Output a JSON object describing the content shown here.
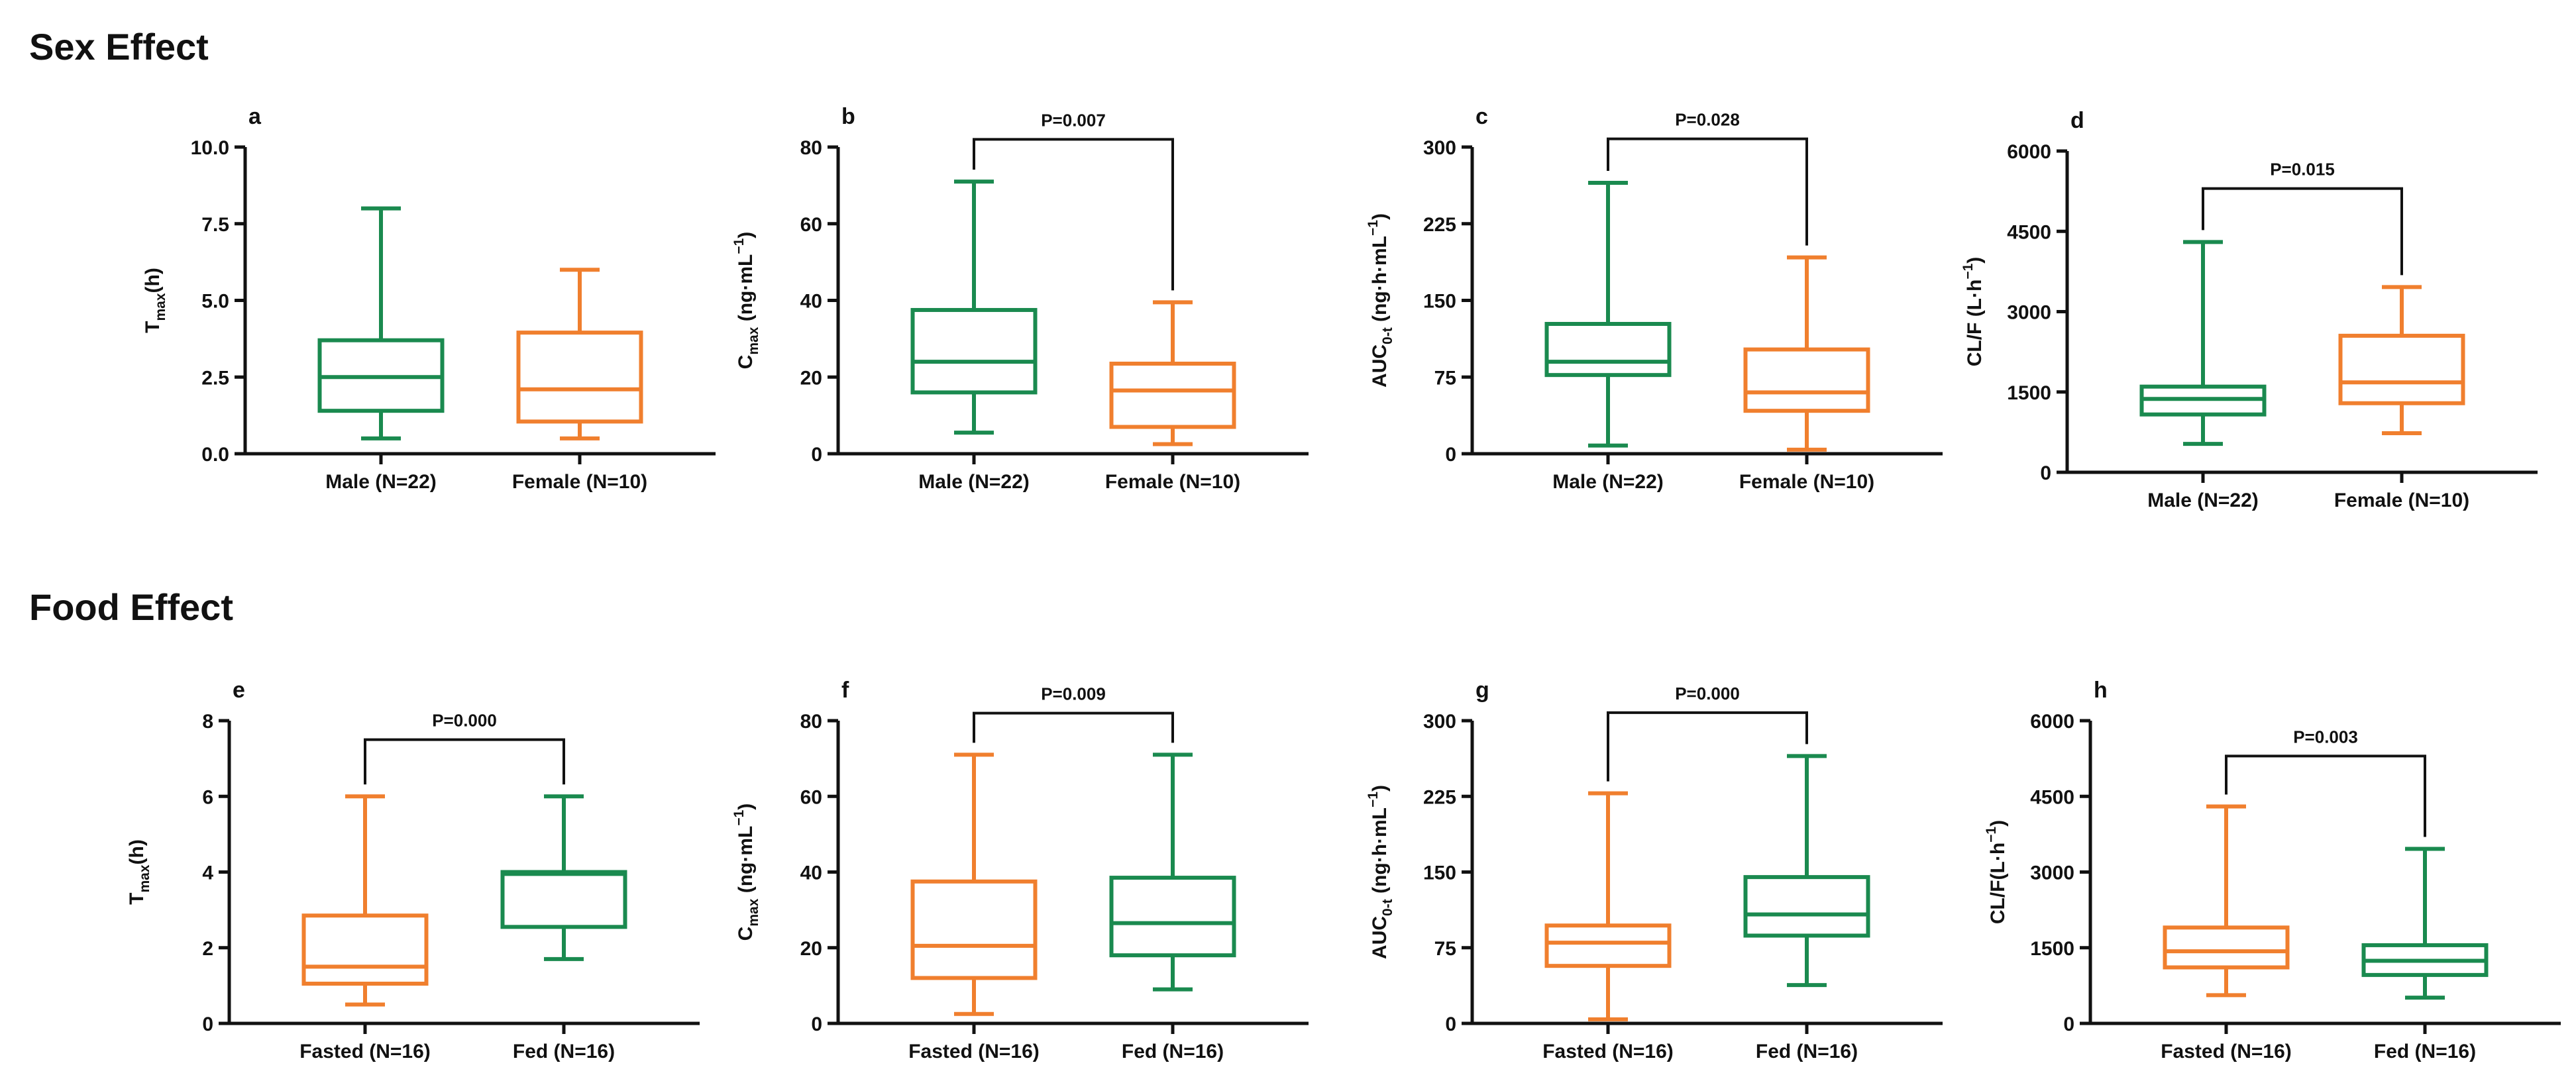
{
  "sections": {
    "sex_title": "Sex Effect",
    "food_title": "Food Effect"
  },
  "colors": {
    "green": "#1a8a4f",
    "orange": "#f07f2e",
    "axis": "#111111"
  },
  "chart_data": [
    {
      "panel": "a",
      "type": "box",
      "ylabel_main": "T",
      "ylabel_sub": "max",
      "ylabel_tail": "(h)",
      "ylim": [
        0,
        10
      ],
      "yticks": [
        "0.0",
        "2.5",
        "5.0",
        "7.5",
        "10.0"
      ],
      "categories": [
        "Male (N=22)",
        "Female (N=10)"
      ],
      "boxes": [
        {
          "min": 0.5,
          "q1": 1.4,
          "median": 2.5,
          "q3": 3.7,
          "max": 8.0,
          "color": "green"
        },
        {
          "min": 0.5,
          "q1": 1.05,
          "median": 2.1,
          "q3": 3.95,
          "max": 6.0,
          "color": "orange"
        }
      ],
      "pvalue": null
    },
    {
      "panel": "b",
      "type": "box",
      "ylabel_main": "C",
      "ylabel_sub": "max",
      "ylabel_tail": " (ng·mL",
      "ylabel_sup": "−1",
      "ylabel_end": ")",
      "ylim": [
        0,
        80
      ],
      "yticks": [
        "0",
        "20",
        "40",
        "60",
        "80"
      ],
      "categories": [
        "Male (N=22)",
        "Female (N=10)"
      ],
      "boxes": [
        {
          "min": 5.5,
          "q1": 16,
          "median": 24,
          "q3": 37.5,
          "max": 71,
          "color": "green"
        },
        {
          "min": 2.5,
          "q1": 7,
          "median": 16.5,
          "q3": 23.5,
          "max": 39.5,
          "color": "orange"
        }
      ],
      "pvalue": "P=0.007",
      "bracket_y": 82
    },
    {
      "panel": "c",
      "type": "box",
      "ylabel_main": "AUC",
      "ylabel_sub": "0-t",
      "ylabel_tail": " (ng·h·mL",
      "ylabel_sup": "−1",
      "ylabel_end": ")",
      "ylim": [
        0,
        300
      ],
      "yticks": [
        "0",
        "75",
        "150",
        "225",
        "300"
      ],
      "categories": [
        "Male (N=22)",
        "Female (N=10)"
      ],
      "boxes": [
        {
          "min": 8,
          "q1": 77,
          "median": 90,
          "q3": 127,
          "max": 265,
          "color": "green"
        },
        {
          "min": 4,
          "q1": 42,
          "median": 60,
          "q3": 102,
          "max": 192,
          "color": "orange"
        }
      ],
      "pvalue": "P=0.028",
      "bracket_y": 308
    },
    {
      "panel": "d",
      "type": "box",
      "ylabel_main": "CL/F (L·h",
      "ylabel_sup": "−1",
      "ylabel_end": ")",
      "ylim": [
        0,
        6000
      ],
      "yticks": [
        "0",
        "1500",
        "3000",
        "4500",
        "6000"
      ],
      "categories": [
        "Male (N=22)",
        "Female (N=10)"
      ],
      "boxes": [
        {
          "min": 530,
          "q1": 1080,
          "median": 1370,
          "q3": 1600,
          "max": 4300,
          "color": "green"
        },
        {
          "min": 730,
          "q1": 1290,
          "median": 1680,
          "q3": 2550,
          "max": 3460,
          "color": "orange"
        }
      ],
      "pvalue": "P=0.015",
      "bracket_y": 5300
    },
    {
      "panel": "e",
      "type": "box",
      "ylabel_main": "T",
      "ylabel_sub": "max",
      "ylabel_tail": "(h)",
      "ylim": [
        0,
        8
      ],
      "yticks": [
        "0",
        "2",
        "4",
        "6",
        "8"
      ],
      "categories": [
        "Fasted (N=16)",
        "Fed (N=16)"
      ],
      "boxes": [
        {
          "min": 0.5,
          "q1": 1.05,
          "median": 1.5,
          "q3": 2.85,
          "max": 6.0,
          "color": "orange"
        },
        {
          "min": 1.7,
          "q1": 2.55,
          "median": 3.95,
          "q3": 4.0,
          "max": 6.0,
          "color": "green"
        }
      ],
      "pvalue": "P=0.000",
      "bracket_y": 7.5
    },
    {
      "panel": "f",
      "type": "box",
      "ylabel_main": "C",
      "ylabel_sub": "max",
      "ylabel_tail": " (ng·mL",
      "ylabel_sup": "−1",
      "ylabel_end": ")",
      "ylim": [
        0,
        80
      ],
      "yticks": [
        "0",
        "20",
        "40",
        "60",
        "80"
      ],
      "categories": [
        "Fasted (N=16)",
        "Fed (N=16)"
      ],
      "boxes": [
        {
          "min": 2.5,
          "q1": 12,
          "median": 20.5,
          "q3": 37.5,
          "max": 71,
          "color": "orange"
        },
        {
          "min": 9,
          "q1": 18,
          "median": 26.5,
          "q3": 38.5,
          "max": 71,
          "color": "green"
        }
      ],
      "pvalue": "P=0.009",
      "bracket_y": 82
    },
    {
      "panel": "g",
      "type": "box",
      "ylabel_main": "AUC",
      "ylabel_sub": "0-t",
      "ylabel_tail": " (ng·h·mL",
      "ylabel_sup": "−1",
      "ylabel_end": ")",
      "ylim": [
        0,
        300
      ],
      "yticks": [
        "0",
        "75",
        "150",
        "225",
        "300"
      ],
      "categories": [
        "Fasted (N=16)",
        "Fed (N=16)"
      ],
      "boxes": [
        {
          "min": 4,
          "q1": 57,
          "median": 80,
          "q3": 97,
          "max": 228,
          "color": "orange"
        },
        {
          "min": 38,
          "q1": 87,
          "median": 108,
          "q3": 145,
          "max": 265,
          "color": "green"
        }
      ],
      "pvalue": "P=0.000",
      "bracket_y": 308
    },
    {
      "panel": "h",
      "type": "box",
      "ylabel_main": "CL/F(L·h",
      "ylabel_sup": "−1",
      "ylabel_end": ")",
      "ylim": [
        0,
        6000
      ],
      "yticks": [
        "0",
        "1500",
        "3000",
        "4500",
        "6000"
      ],
      "categories": [
        "Fasted (N=16)",
        "Fed (N=16)"
      ],
      "boxes": [
        {
          "min": 560,
          "q1": 1110,
          "median": 1430,
          "q3": 1900,
          "max": 4300,
          "color": "orange"
        },
        {
          "min": 510,
          "q1": 960,
          "median": 1240,
          "q3": 1550,
          "max": 3460,
          "color": "green"
        }
      ],
      "pvalue": "P=0.003",
      "bracket_y": 5300
    }
  ]
}
